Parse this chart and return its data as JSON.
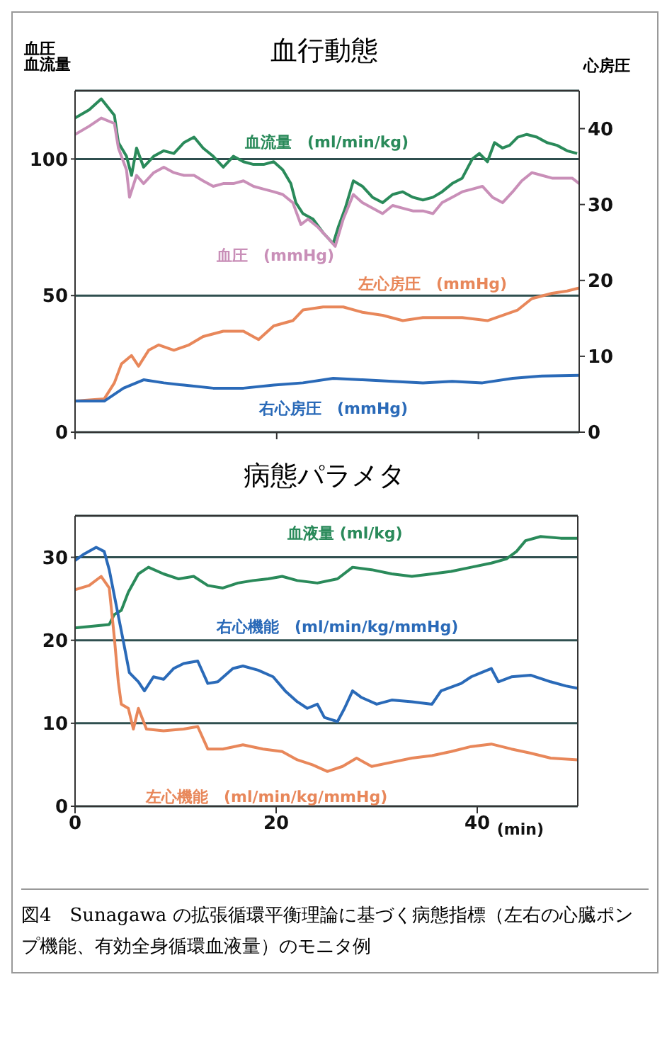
{
  "chart_data": [
    {
      "type": "line",
      "title": "血行動態",
      "annotations": [
        "血圧"
      ],
      "ylabel": "血流量",
      "y2label": "心房圧",
      "xlim": [
        0,
        50
      ],
      "xticks": [
        {
          "value": 0,
          "label": null
        },
        {
          "value": 20,
          "label": null
        },
        {
          "value": 40,
          "label": null
        }
      ],
      "ylim": [
        0,
        125
      ],
      "yticks": [
        0,
        50,
        100
      ],
      "y2lim": [
        0,
        45
      ],
      "y2ticks": [
        0,
        10,
        20,
        30,
        40
      ],
      "grid": "y",
      "tick_labels": "y",
      "line_style": "solid",
      "marker": "none",
      "series": [
        {
          "name": "血流量　(ml/min/kg)",
          "color": "#2a8a5a",
          "x": [
            0,
            1.4,
            2.6,
            3.9,
            4.3,
            5.1,
            5.6,
            6.1,
            6.8,
            7.8,
            8.8,
            9.8,
            10.8,
            11.8,
            12.7,
            13.7,
            14.7,
            15.7,
            16.7,
            17.7,
            18.7,
            19.7,
            20.6,
            21.4,
            21.9,
            22.6,
            23.6,
            24.6,
            25.6,
            26.1,
            26.8,
            27.6,
            28.5,
            29.5,
            30.5,
            31.5,
            32.5,
            33.5,
            34.5,
            35.5,
            36.4,
            37.4,
            38.4,
            39.4,
            40.1,
            40.9,
            41.6,
            42.4,
            43.1,
            43.9,
            44.8,
            45.8,
            46.8,
            47.8,
            48.8,
            49.8
          ],
          "values": [
            115,
            118,
            122,
            116,
            106,
            101,
            94,
            104,
            97,
            101,
            103,
            102,
            106,
            108,
            104,
            101,
            97,
            101,
            99,
            98,
            98,
            99,
            96,
            91,
            84,
            80,
            78,
            73,
            69,
            75,
            82,
            92,
            90,
            86,
            84,
            87,
            88,
            86,
            85,
            86,
            88,
            91,
            93,
            100,
            102,
            99,
            106,
            104,
            105,
            108,
            109,
            108,
            106,
            105,
            103,
            102
          ]
        },
        {
          "name": "血圧　(mmHg)",
          "color": "#c98fb8",
          "x": [
            0,
            1.4,
            2.6,
            3.9,
            4.3,
            5.1,
            5.4,
            6.1,
            6.8,
            7.8,
            8.8,
            9.8,
            10.8,
            11.8,
            12.7,
            13.7,
            14.7,
            15.7,
            16.7,
            17.7,
            18.7,
            19.7,
            20.6,
            21.6,
            22.4,
            23.1,
            24.1,
            25.1,
            25.8,
            26.6,
            27.6,
            28.5,
            29.5,
            30.5,
            31.5,
            32.5,
            33.5,
            34.5,
            35.5,
            36.4,
            37.4,
            38.4,
            39.4,
            40.4,
            41.4,
            42.4,
            43.4,
            44.3,
            45.3,
            46.3,
            47.3,
            48.3,
            49.3,
            50
          ],
          "values": [
            109,
            112,
            115,
            113,
            104,
            96,
            86,
            94,
            91,
            95,
            97,
            95,
            94,
            94,
            92,
            90,
            91,
            91,
            92,
            90,
            89,
            88,
            87,
            84,
            76,
            78,
            75,
            71,
            68,
            78,
            87,
            84,
            82,
            80,
            83,
            82,
            81,
            81,
            80,
            84,
            86,
            88,
            89,
            90,
            86,
            84,
            88,
            92,
            95,
            94,
            93,
            93,
            93,
            91
          ]
        },
        {
          "name": "左心房圧　(mmHg)",
          "color": "#e8875a",
          "axis": "y2",
          "x": [
            0,
            2.9,
            3.9,
            4.6,
            5.6,
            6.3,
            7.3,
            8.3,
            9.8,
            11.3,
            12.7,
            14.7,
            16.7,
            18.2,
            19.7,
            21.6,
            22.6,
            24.6,
            26.6,
            28.5,
            30.5,
            32.5,
            34.5,
            36.4,
            38.4,
            40.9,
            42.4,
            43.9,
            45.3,
            47.3,
            48.8,
            50
          ],
          "values": [
            4.1,
            4.4,
            6.5,
            9,
            10.1,
            8.7,
            10.8,
            11.5,
            10.8,
            11.5,
            12.6,
            13.3,
            13.3,
            12.2,
            14,
            14.7,
            16.1,
            16.5,
            16.5,
            15.8,
            15.4,
            14.7,
            15.1,
            15.1,
            15.1,
            14.7,
            15.4,
            16.1,
            17.6,
            18.3,
            18.6,
            19
          ]
        },
        {
          "name": "右心房圧　(mmHg)",
          "color": "#2a6ab8",
          "axis": "y2",
          "x": [
            0,
            2.9,
            4.8,
            6.8,
            8.8,
            10.8,
            13.7,
            16.7,
            19.7,
            22.6,
            25.6,
            28.5,
            31.5,
            34.5,
            37.4,
            40.4,
            43.4,
            46.3,
            50
          ],
          "values": [
            4.1,
            4.1,
            5.8,
            6.9,
            6.5,
            6.2,
            5.8,
            5.8,
            6.2,
            6.5,
            7.1,
            6.9,
            6.7,
            6.5,
            6.7,
            6.5,
            7.1,
            7.4,
            7.5
          ]
        }
      ]
    },
    {
      "type": "line",
      "title": "病態パラメタ",
      "xlabel": "(min)",
      "xlim": [
        0,
        50
      ],
      "xticks": [
        0,
        20,
        40
      ],
      "ylim": [
        0,
        35
      ],
      "yticks": [
        0,
        10,
        20,
        30
      ],
      "grid": "y",
      "line_style": "solid",
      "marker": "none",
      "annotations": [
        "図4　Sunagawa の拡張循環平衡理論に基づく病態指標（左右の心臓ポンプ機能、有効全身循環血液量）のモニタ例"
      ],
      "series": [
        {
          "name": "血液量 (ml/kg)",
          "color": "#2a8a5a",
          "x": [
            0,
            3.4,
            3.9,
            4.6,
            5.3,
            6.3,
            7.3,
            8.8,
            10.3,
            11.8,
            13.2,
            14.7,
            16.2,
            17.7,
            19.2,
            20.6,
            22.1,
            24.1,
            26.1,
            27.6,
            29.5,
            31.5,
            33.5,
            35.5,
            37.4,
            39.4,
            41.4,
            42.9,
            43.9,
            44.8,
            46.3,
            48.3,
            50
          ],
          "values": [
            21.5,
            21.9,
            23.1,
            23.6,
            25.8,
            28,
            28.8,
            28,
            27.4,
            27.7,
            26.6,
            26.3,
            26.9,
            27.2,
            27.4,
            27.7,
            27.2,
            26.9,
            27.4,
            28.8,
            28.5,
            28,
            27.7,
            28,
            28.3,
            28.8,
            29.3,
            29.8,
            30.7,
            32,
            32.5,
            32.3,
            32.3
          ]
        },
        {
          "name": "右心機能　(ml/min/kg/mmHg)",
          "color": "#2a6ab8",
          "x": [
            0,
            0.9,
            2.1,
            2.9,
            3.4,
            4.1,
            4.8,
            5.4,
            6.3,
            6.9,
            7.8,
            8.8,
            9.8,
            10.8,
            12.2,
            13.2,
            14.2,
            15.7,
            16.7,
            18.2,
            19.7,
            20.9,
            22.1,
            23.1,
            24.1,
            24.8,
            26.1,
            26.8,
            27.6,
            28.5,
            30,
            31.5,
            33.5,
            35.5,
            36.4,
            38.4,
            39.4,
            40.4,
            41.4,
            42.1,
            43.4,
            45.3,
            47.3,
            48.8,
            50
          ],
          "values": [
            29.6,
            30.4,
            31.2,
            30.7,
            28.5,
            24.2,
            19.9,
            16.1,
            15,
            13.9,
            15.6,
            15.3,
            16.6,
            17.2,
            17.5,
            14.8,
            15,
            16.6,
            16.9,
            16.4,
            15.6,
            13.9,
            12.6,
            11.8,
            12.3,
            10.7,
            10.2,
            11.8,
            13.9,
            13.1,
            12.3,
            12.8,
            12.6,
            12.3,
            13.9,
            14.8,
            15.6,
            16.1,
            16.6,
            15,
            15.6,
            15.8,
            15,
            14.5,
            14.2
          ]
        },
        {
          "name": "左心機能　(ml/min/kg/mmHg)",
          "color": "#e8875a",
          "x": [
            0,
            1.4,
            2.6,
            3.4,
            3.9,
            4.3,
            4.6,
            5.3,
            5.8,
            6.3,
            7.1,
            8.8,
            10.8,
            12.2,
            13.2,
            14.7,
            16.7,
            18.7,
            20.6,
            22.1,
            23.6,
            25.1,
            26.6,
            28,
            29.5,
            31.5,
            33.5,
            35.5,
            37.4,
            39.4,
            41.4,
            43.4,
            45.3,
            47.3,
            50
          ],
          "values": [
            26.1,
            26.6,
            27.7,
            26.3,
            20.4,
            15,
            12.3,
            11.8,
            9.3,
            11.8,
            9.3,
            9.1,
            9.3,
            9.6,
            6.9,
            6.9,
            7.4,
            6.9,
            6.6,
            5.6,
            5,
            4.2,
            4.8,
            5.8,
            4.8,
            5.3,
            5.8,
            6.1,
            6.6,
            7.2,
            7.5,
            6.9,
            6.4,
            5.8,
            5.6
          ]
        }
      ]
    }
  ]
}
